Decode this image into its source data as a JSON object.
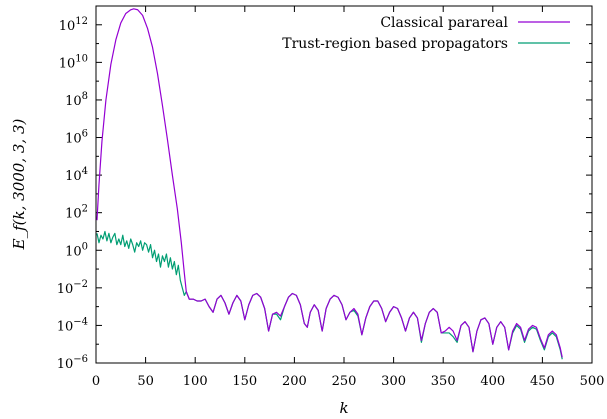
{
  "chart_data": {
    "type": "line",
    "title": "",
    "xlabel": "k",
    "ylabel": "E_f(k, 3000, 3, 3)",
    "xlim": [
      0,
      500
    ],
    "ylim_log10": [
      -6,
      13
    ],
    "y_scale": "log",
    "grid": false,
    "legend_position": "top-right",
    "x_ticks": [
      0,
      50,
      100,
      150,
      200,
      250,
      300,
      350,
      400,
      450,
      500
    ],
    "y_tick_exponents": [
      -6,
      -4,
      -2,
      0,
      2,
      4,
      6,
      8,
      10,
      12
    ],
    "y_tick_base": "10",
    "series": [
      {
        "name": "Classical parareal",
        "color": "#9400d3",
        "points_log10": [
          [
            1,
            1.6
          ],
          [
            3,
            3.5
          ],
          [
            6,
            5.8
          ],
          [
            10,
            8.0
          ],
          [
            15,
            9.9
          ],
          [
            20,
            11.2
          ],
          [
            25,
            12.1
          ],
          [
            30,
            12.6
          ],
          [
            35,
            12.8
          ],
          [
            38,
            12.85
          ],
          [
            42,
            12.8
          ],
          [
            47,
            12.5
          ],
          [
            52,
            11.8
          ],
          [
            57,
            10.8
          ],
          [
            62,
            9.4
          ],
          [
            67,
            7.7
          ],
          [
            72,
            5.9
          ],
          [
            77,
            4.0
          ],
          [
            82,
            2.2
          ],
          [
            86,
            0.4
          ],
          [
            89,
            -1.2
          ],
          [
            91,
            -2.2
          ],
          [
            94,
            -2.6
          ],
          [
            98,
            -2.6
          ],
          [
            102,
            -2.7
          ],
          [
            106,
            -2.7
          ],
          [
            110,
            -2.6
          ],
          [
            114,
            -3.0
          ],
          [
            118,
            -3.3
          ],
          [
            122,
            -2.6
          ],
          [
            126,
            -2.4
          ],
          [
            130,
            -2.8
          ],
          [
            134,
            -3.4
          ],
          [
            138,
            -2.8
          ],
          [
            142,
            -2.4
          ],
          [
            146,
            -2.7
          ],
          [
            150,
            -3.7
          ],
          [
            154,
            -2.9
          ],
          [
            158,
            -2.4
          ],
          [
            162,
            -2.3
          ],
          [
            166,
            -2.5
          ],
          [
            170,
            -3.1
          ],
          [
            174,
            -4.3
          ],
          [
            178,
            -3.4
          ],
          [
            182,
            -3.3
          ],
          [
            186,
            -3.5
          ],
          [
            190,
            -3.0
          ],
          [
            194,
            -2.5
          ],
          [
            198,
            -2.3
          ],
          [
            202,
            -2.4
          ],
          [
            206,
            -2.9
          ],
          [
            210,
            -3.9
          ],
          [
            213,
            -4.1
          ],
          [
            216,
            -3.3
          ],
          [
            220,
            -2.9
          ],
          [
            224,
            -3.2
          ],
          [
            228,
            -4.3
          ],
          [
            232,
            -3.1
          ],
          [
            236,
            -2.6
          ],
          [
            240,
            -2.4
          ],
          [
            244,
            -2.5
          ],
          [
            248,
            -2.9
          ],
          [
            252,
            -3.7
          ],
          [
            256,
            -3.3
          ],
          [
            260,
            -3.1
          ],
          [
            264,
            -3.4
          ],
          [
            268,
            -4.5
          ],
          [
            272,
            -3.6
          ],
          [
            276,
            -3.0
          ],
          [
            280,
            -2.7
          ],
          [
            284,
            -2.7
          ],
          [
            288,
            -3.1
          ],
          [
            292,
            -3.8
          ],
          [
            296,
            -3.3
          ],
          [
            300,
            -3.0
          ],
          [
            304,
            -3.1
          ],
          [
            308,
            -3.6
          ],
          [
            312,
            -4.3
          ],
          [
            316,
            -3.6
          ],
          [
            320,
            -3.3
          ],
          [
            324,
            -3.6
          ],
          [
            328,
            -4.8
          ],
          [
            332,
            -3.9
          ],
          [
            336,
            -3.3
          ],
          [
            340,
            -3.1
          ],
          [
            344,
            -3.3
          ],
          [
            348,
            -4.4
          ],
          [
            352,
            -4.3
          ],
          [
            356,
            -4.1
          ],
          [
            360,
            -4.3
          ],
          [
            364,
            -4.8
          ],
          [
            368,
            -4.0
          ],
          [
            372,
            -3.8
          ],
          [
            376,
            -4.1
          ],
          [
            380,
            -5.4
          ],
          [
            384,
            -4.3
          ],
          [
            388,
            -3.7
          ],
          [
            392,
            -3.6
          ],
          [
            396,
            -3.9
          ],
          [
            400,
            -5.0
          ],
          [
            404,
            -4.1
          ],
          [
            408,
            -3.8
          ],
          [
            412,
            -4.1
          ],
          [
            416,
            -5.3
          ],
          [
            420,
            -4.3
          ],
          [
            424,
            -3.9
          ],
          [
            428,
            -4.1
          ],
          [
            432,
            -4.8
          ],
          [
            436,
            -4.2
          ],
          [
            440,
            -4.0
          ],
          [
            444,
            -4.1
          ],
          [
            448,
            -4.7
          ],
          [
            452,
            -5.2
          ],
          [
            456,
            -4.5
          ],
          [
            460,
            -4.3
          ],
          [
            464,
            -4.5
          ],
          [
            468,
            -5.2
          ],
          [
            470,
            -5.7
          ]
        ]
      },
      {
        "name": "Trust-region based propagators",
        "color": "#009e73",
        "points_log10": [
          [
            1,
            0.9
          ],
          [
            3,
            0.4
          ],
          [
            5,
            0.8
          ],
          [
            7,
            0.6
          ],
          [
            9,
            1.0
          ],
          [
            11,
            0.5
          ],
          [
            13,
            0.9
          ],
          [
            15,
            0.4
          ],
          [
            17,
            0.7
          ],
          [
            19,
            0.9
          ],
          [
            21,
            0.3
          ],
          [
            23,
            0.6
          ],
          [
            25,
            0.3
          ],
          [
            27,
            0.8
          ],
          [
            29,
            0.2
          ],
          [
            31,
            0.5
          ],
          [
            33,
            0.1
          ],
          [
            35,
            0.6
          ],
          [
            37,
            0.3
          ],
          [
            39,
            -0.1
          ],
          [
            41,
            0.4
          ],
          [
            43,
            0.2
          ],
          [
            45,
            0.5
          ],
          [
            47,
            0.0
          ],
          [
            49,
            0.4
          ],
          [
            51,
            0.3
          ],
          [
            53,
            -0.1
          ],
          [
            55,
            0.3
          ],
          [
            57,
            -0.4
          ],
          [
            59,
            0.0
          ],
          [
            61,
            -0.6
          ],
          [
            63,
            -0.2
          ],
          [
            65,
            -0.9
          ],
          [
            67,
            -0.3
          ],
          [
            69,
            -0.6
          ],
          [
            71,
            -0.2
          ],
          [
            73,
            -0.9
          ],
          [
            75,
            -0.4
          ],
          [
            77,
            -1.0
          ],
          [
            79,
            -0.6
          ],
          [
            81,
            -1.3
          ],
          [
            83,
            -0.8
          ],
          [
            85,
            -1.6
          ],
          [
            87,
            -2.0
          ],
          [
            89,
            -2.4
          ],
          [
            91,
            -2.2
          ],
          [
            94,
            -2.6
          ],
          [
            98,
            -2.6
          ],
          [
            102,
            -2.7
          ],
          [
            106,
            -2.7
          ],
          [
            110,
            -2.6
          ],
          [
            114,
            -3.0
          ],
          [
            118,
            -3.3
          ],
          [
            122,
            -2.6
          ],
          [
            126,
            -2.4
          ],
          [
            130,
            -2.8
          ],
          [
            134,
            -3.4
          ],
          [
            138,
            -2.8
          ],
          [
            142,
            -2.4
          ],
          [
            146,
            -2.7
          ],
          [
            150,
            -3.7
          ],
          [
            154,
            -2.9
          ],
          [
            158,
            -2.4
          ],
          [
            162,
            -2.3
          ],
          [
            166,
            -2.5
          ],
          [
            170,
            -3.1
          ],
          [
            174,
            -4.3
          ],
          [
            178,
            -3.4
          ],
          [
            182,
            -3.4
          ],
          [
            186,
            -3.7
          ],
          [
            190,
            -3.0
          ],
          [
            194,
            -2.5
          ],
          [
            198,
            -2.3
          ],
          [
            202,
            -2.4
          ],
          [
            206,
            -2.9
          ],
          [
            210,
            -3.9
          ],
          [
            213,
            -4.1
          ],
          [
            216,
            -3.3
          ],
          [
            220,
            -2.9
          ],
          [
            224,
            -3.2
          ],
          [
            228,
            -4.3
          ],
          [
            232,
            -3.1
          ],
          [
            236,
            -2.6
          ],
          [
            240,
            -2.4
          ],
          [
            244,
            -2.5
          ],
          [
            248,
            -2.9
          ],
          [
            252,
            -3.7
          ],
          [
            256,
            -3.3
          ],
          [
            260,
            -3.2
          ],
          [
            264,
            -3.5
          ],
          [
            268,
            -4.5
          ],
          [
            272,
            -3.6
          ],
          [
            276,
            -3.0
          ],
          [
            280,
            -2.7
          ],
          [
            284,
            -2.7
          ],
          [
            288,
            -3.1
          ],
          [
            292,
            -3.8
          ],
          [
            296,
            -3.3
          ],
          [
            300,
            -3.0
          ],
          [
            304,
            -3.1
          ],
          [
            308,
            -3.6
          ],
          [
            312,
            -4.3
          ],
          [
            316,
            -3.6
          ],
          [
            320,
            -3.3
          ],
          [
            324,
            -3.6
          ],
          [
            328,
            -4.9
          ],
          [
            332,
            -3.9
          ],
          [
            336,
            -3.3
          ],
          [
            340,
            -3.1
          ],
          [
            344,
            -3.3
          ],
          [
            348,
            -4.4
          ],
          [
            352,
            -4.4
          ],
          [
            356,
            -4.4
          ],
          [
            360,
            -4.6
          ],
          [
            364,
            -4.9
          ],
          [
            368,
            -4.0
          ],
          [
            372,
            -3.8
          ],
          [
            376,
            -4.1
          ],
          [
            380,
            -5.4
          ],
          [
            384,
            -4.3
          ],
          [
            388,
            -3.7
          ],
          [
            392,
            -3.6
          ],
          [
            396,
            -3.9
          ],
          [
            400,
            -5.0
          ],
          [
            404,
            -4.1
          ],
          [
            408,
            -3.8
          ],
          [
            412,
            -4.1
          ],
          [
            416,
            -5.3
          ],
          [
            420,
            -4.4
          ],
          [
            424,
            -4.0
          ],
          [
            428,
            -4.2
          ],
          [
            432,
            -4.9
          ],
          [
            436,
            -4.3
          ],
          [
            440,
            -4.1
          ],
          [
            444,
            -4.2
          ],
          [
            448,
            -4.8
          ],
          [
            452,
            -5.3
          ],
          [
            456,
            -4.6
          ],
          [
            460,
            -4.4
          ],
          [
            464,
            -4.6
          ],
          [
            468,
            -5.3
          ],
          [
            470,
            -5.8
          ]
        ]
      }
    ]
  }
}
